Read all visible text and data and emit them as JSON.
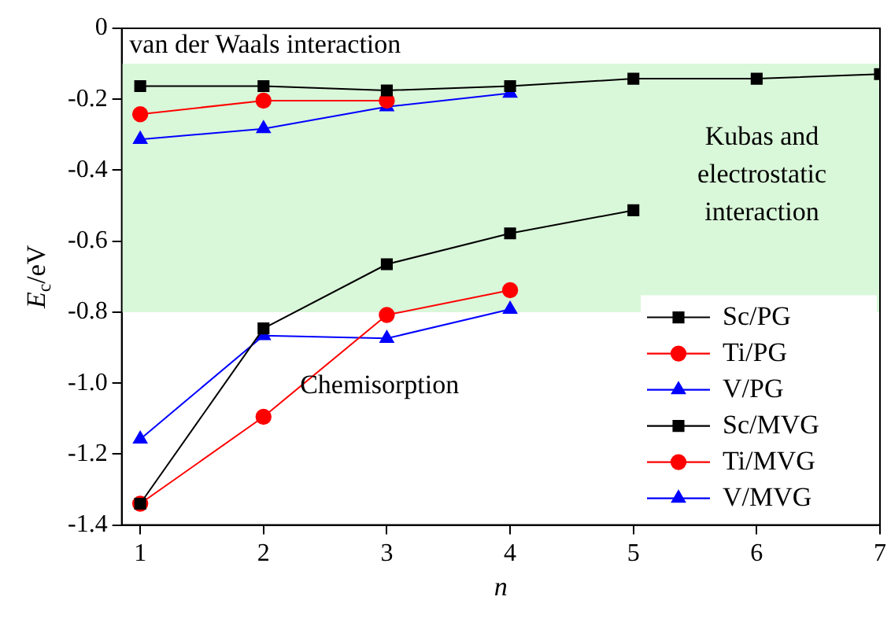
{
  "chart_data": {
    "type": "line",
    "xlabel": "n",
    "ylabel": "E$_{c}$/eV",
    "x": [
      1,
      2,
      3,
      4,
      5,
      6,
      7
    ],
    "xlim": [
      0.85,
      7
    ],
    "xticks": [
      1,
      2,
      3,
      4,
      5,
      6,
      7
    ],
    "ylim": [
      -1.4,
      0
    ],
    "yticks": [
      0,
      -0.2,
      -0.4,
      -0.6,
      -0.8,
      {
        "value": -1,
        "label": "-1.0"
      },
      -1.2,
      -1.4
    ],
    "grid": false,
    "legend": "bottom right",
    "line_style": "solid",
    "bands": [
      {
        "axis": "y",
        "from": -0.8,
        "to": -0.1,
        "label": "Kubas and electrostatic interaction",
        "color": "#d9f7d9"
      }
    ],
    "annotations": [
      "van der Waals interaction",
      "Chemisorption"
    ],
    "series": [
      {
        "name": "Sc/PG",
        "color": "#000000",
        "marker": "square",
        "values": [
          -1.34,
          -0.846,
          -0.665,
          -0.578,
          -0.513,
          null,
          null
        ]
      },
      {
        "name": "Ti/PG",
        "color": "#ff0000",
        "marker": "circle",
        "values": [
          -1.34,
          -1.095,
          -0.808,
          -0.738,
          null,
          null,
          null
        ]
      },
      {
        "name": "V/PG",
        "color": "#0000ff",
        "marker": "triangle",
        "values": [
          -1.158,
          -0.866,
          -0.874,
          -0.792,
          null,
          null,
          null
        ]
      },
      {
        "name": "Sc/MVG",
        "color": "#000000",
        "marker": "square",
        "values": [
          -0.163,
          -0.163,
          -0.175,
          -0.163,
          -0.142,
          -0.142,
          -0.129
        ]
      },
      {
        "name": "Ti/MVG",
        "color": "#ff0000",
        "marker": "circle",
        "values": [
          -0.242,
          -0.204,
          -0.204,
          null,
          null,
          null,
          null
        ]
      },
      {
        "name": "V/MVG",
        "color": "#0000ff",
        "marker": "triangle",
        "values": [
          -0.313,
          -0.283,
          -0.221,
          -0.183,
          null,
          null,
          null
        ]
      }
    ]
  }
}
